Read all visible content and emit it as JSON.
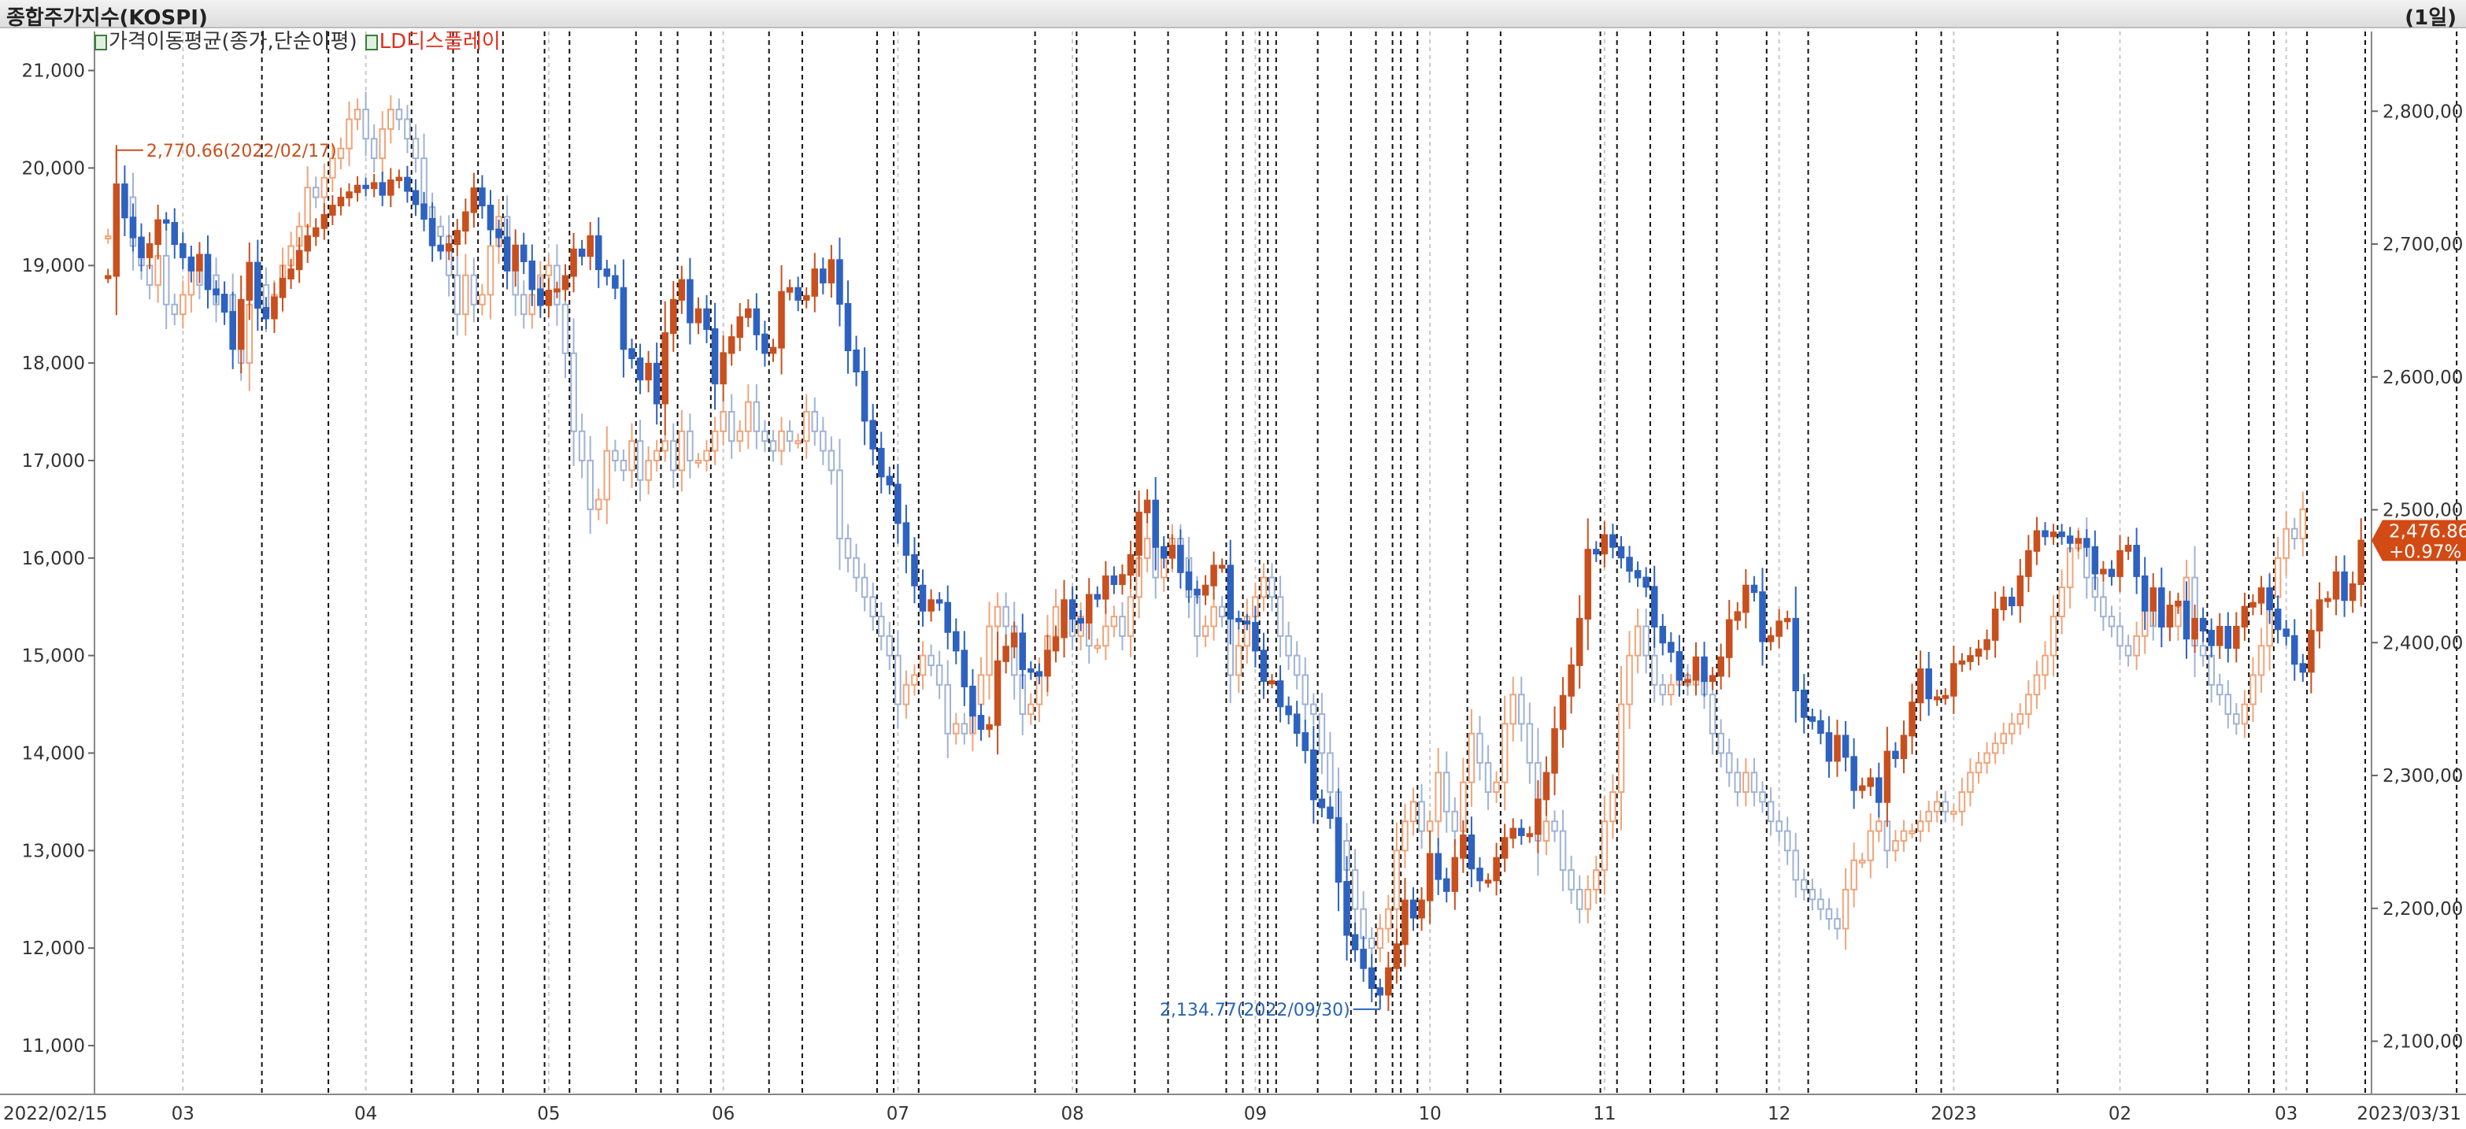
{
  "window": {
    "title": "종합주가지수(KOSPI)",
    "period": "(1일)"
  },
  "legend": {
    "moving_average": "가격이동평균(종가,단순이평)",
    "ld_display": "LD디스플레이"
  },
  "colors": {
    "up_fill": "#c8501e",
    "down_fill": "#2e62c0",
    "ghost_up": "#f0a47a",
    "ghost_down": "#9fb3d4",
    "last_badge": "#d24a14",
    "vline": "#111111",
    "grid": "#c8c8c8"
  },
  "chart_data": {
    "type": "candlestick",
    "title": "종합주가지수(KOSPI)",
    "period": "1일",
    "x_range": [
      "2022/02/15",
      "2023/03/31"
    ],
    "x_tick_labels": [
      "2022/02/15",
      "03",
      "04",
      "05",
      "06",
      "07",
      "08",
      "09",
      "10",
      "11",
      "12",
      "2023",
      "02",
      "03",
      "2023/03/31"
    ],
    "left_axis": {
      "series": "LD디스플레이",
      "range": [
        10500,
        21400
      ],
      "tick_values": [
        11000,
        12000,
        13000,
        14000,
        15000,
        16000,
        17000,
        18000,
        19000,
        20000,
        21000
      ],
      "tick_labels": [
        "11,000",
        "12,000",
        "13,000",
        "14,000",
        "15,000",
        "16,000",
        "17,000",
        "18,000",
        "19,000",
        "20,000",
        "21,000"
      ]
    },
    "right_axis": {
      "series": "종합주가지수(KOSPI)",
      "range": [
        2060,
        2860
      ],
      "tick_values": [
        2100,
        2200,
        2300,
        2400,
        2500,
        2600,
        2700,
        2800
      ],
      "tick_labels": [
        "2,100,00",
        "2,200,00",
        "2,300,00",
        "2,400,00",
        "2,500,00",
        "2,600,00",
        "2,700,00",
        "2,800,00"
      ]
    },
    "annotations": {
      "high": {
        "label": "2,770.66(2022/02/17)",
        "date_index": 1,
        "value": 2770.66
      },
      "low": {
        "label": "2,134.77(2022/09/30)",
        "date_index": 153,
        "value": 2134.77
      }
    },
    "last_value": {
      "price": "2,476.86",
      "change": "+0.97%",
      "value": 2476.86
    },
    "kospi_close": [
      2676,
      2745,
      2720,
      2705,
      2690,
      2700,
      2718,
      2716,
      2700,
      2690,
      2680,
      2692,
      2666,
      2662,
      2649,
      2621,
      2658,
      2686,
      2652,
      2644,
      2660,
      2674,
      2681,
      2695,
      2706,
      2712,
      2722,
      2729,
      2735,
      2739,
      2744,
      2742,
      2746,
      2737,
      2748,
      2750,
      2740,
      2730,
      2719,
      2699,
      2695,
      2700,
      2710,
      2724,
      2742,
      2729,
      2711,
      2705,
      2680,
      2699,
      2687,
      2666,
      2654,
      2665,
      2666,
      2676,
      2696,
      2691,
      2706,
      2681,
      2676,
      2667,
      2621,
      2614,
      2598,
      2610,
      2580,
      2633,
      2658,
      2673,
      2641,
      2651,
      2636,
      2595,
      2618,
      2630,
      2645,
      2651,
      2632,
      2618,
      2622,
      2664,
      2667,
      2658,
      2661,
      2681,
      2671,
      2688,
      2655,
      2620,
      2604,
      2567,
      2546,
      2525,
      2519,
      2490,
      2466,
      2443,
      2424,
      2432,
      2430,
      2408,
      2394,
      2367,
      2345,
      2335,
      2338,
      2386,
      2397,
      2407,
      2380,
      2378,
      2375,
      2394,
      2404,
      2432,
      2418,
      2415,
      2436,
      2433,
      2450,
      2444,
      2451,
      2466,
      2498,
      2507,
      2472,
      2464,
      2473,
      2453,
      2440,
      2436,
      2443,
      2458,
      2458,
      2418,
      2416,
      2415,
      2394,
      2371,
      2371,
      2352,
      2346,
      2332,
      2319,
      2282,
      2276,
      2268,
      2220,
      2180,
      2169,
      2155,
      2140,
      2135,
      2155,
      2173,
      2206,
      2193,
      2206,
      2241,
      2222,
      2213,
      2238,
      2255,
      2230,
      2221,
      2221,
      2238,
      2253,
      2260,
      2255,
      2256,
      2282,
      2302,
      2335,
      2360,
      2383,
      2418,
      2470,
      2467,
      2481,
      2472,
      2464,
      2454,
      2449,
      2442,
      2412,
      2400,
      2393,
      2372,
      2372,
      2389,
      2371,
      2375,
      2389,
      2417,
      2423,
      2443,
      2438,
      2401,
      2405,
      2416,
      2418,
      2364,
      2344,
      2341,
      2332,
      2311,
      2330,
      2314,
      2289,
      2292,
      2298,
      2280,
      2318,
      2313,
      2330,
      2355,
      2380,
      2358,
      2359,
      2360,
      2384,
      2386,
      2390,
      2395,
      2402,
      2425,
      2434,
      2428,
      2450,
      2469,
      2484,
      2480,
      2483,
      2480,
      2475,
      2478,
      2472,
      2452,
      2455,
      2450,
      2469,
      2473,
      2450,
      2424,
      2441,
      2412,
      2428,
      2431,
      2403,
      2418,
      2409,
      2398,
      2412,
      2396,
      2412,
      2427,
      2430,
      2441,
      2425,
      2410,
      2405,
      2384,
      2378,
      2409,
      2432,
      2433,
      2453,
      2432,
      2444,
      2476.86
    ],
    "ld_close": [
      19300,
      19600,
      19700,
      19200,
      19000,
      18800,
      19100,
      18600,
      18500,
      18700,
      19000,
      18800,
      18900,
      18600,
      18700,
      18300,
      18000,
      18600,
      18800,
      18500,
      18700,
      19000,
      19200,
      19400,
      19800,
      19700,
      19900,
      20100,
      20200,
      20500,
      20600,
      20300,
      20100,
      20400,
      20600,
      20500,
      20300,
      20100,
      19600,
      19400,
      19300,
      18900,
      18500,
      18900,
      18600,
      18700,
      19200,
      19500,
      19100,
      18700,
      18500,
      18700,
      18900,
      19000,
      18600,
      18100,
      17300,
      17000,
      16500,
      16600,
      17100,
      17000,
      16900,
      17200,
      16800,
      17000,
      17100,
      17200,
      16900,
      17300,
      17000,
      17000,
      17100,
      17300,
      17500,
      17200,
      17300,
      17600,
      17300,
      17200,
      17100,
      17300,
      17200,
      17200,
      17500,
      17300,
      17100,
      16900,
      16200,
      16000,
      15800,
      15600,
      15400,
      15200,
      15000,
      14500,
      14700,
      14800,
      15000,
      14900,
      14700,
      14200,
      14300,
      14200,
      14500,
      14800,
      15300,
      15500,
      15300,
      14800,
      14400,
      14500,
      14800,
      15200,
      15500,
      15400,
      15200,
      15400,
      15100,
      15100,
      15300,
      15400,
      15200,
      15600,
      16000,
      16200,
      15800,
      16000,
      16200,
      16000,
      15600,
      15200,
      15300,
      15500,
      15400,
      14800,
      15100,
      15400,
      15600,
      15800,
      15600,
      15200,
      15000,
      14800,
      14500,
      14400,
      14000,
      13600,
      13100,
      12800,
      12400,
      12100,
      12000,
      12200,
      12400,
      13000,
      13300,
      13500,
      13200,
      13300,
      13800,
      13400,
      13200,
      13700,
      14200,
      13900,
      13600,
      13700,
      14300,
      14600,
      14300,
      13900,
      13100,
      13300,
      13200,
      12800,
      12600,
      12400,
      12600,
      12800,
      13300,
      13600,
      14500,
      15000,
      15300,
      15000,
      14700,
      14600,
      14700,
      14800,
      14700,
      14800,
      14600,
      14200,
      14000,
      13800,
      13600,
      13800,
      13600,
      13500,
      13300,
      13200,
      13000,
      12700,
      12600,
      12500,
      12400,
      12300,
      12200,
      12600,
      12900,
      12900,
      13200,
      13300,
      13000,
      13100,
      13200,
      13200,
      13300,
      13400,
      13500,
      13400,
      13400,
      13600,
      13800,
      13900,
      14000,
      14100,
      14200,
      14300,
      14400,
      14600,
      14800,
      15000,
      15400,
      15700,
      16100,
      16200,
      15800,
      15600,
      15400,
      15300,
      15100,
      15000,
      15200,
      15500,
      15300,
      15400,
      15300,
      15500,
      15800,
      15100,
      15000,
      14700,
      14600,
      14400,
      14300,
      14500,
      14800,
      15100,
      15600,
      16000,
      16300,
      16200,
      16500
    ],
    "event_dividers_at_index": [
      19,
      27,
      37,
      42,
      45,
      48,
      53,
      56,
      64,
      67,
      69,
      73,
      80,
      84,
      93,
      95,
      98,
      112,
      117,
      124,
      128,
      135,
      137,
      139,
      140,
      141,
      146,
      150,
      153,
      155,
      156,
      158,
      164,
      168,
      180,
      182,
      186,
      190,
      194,
      200,
      205,
      218,
      221,
      235,
      253,
      258,
      261,
      265,
      272,
      283
    ]
  }
}
